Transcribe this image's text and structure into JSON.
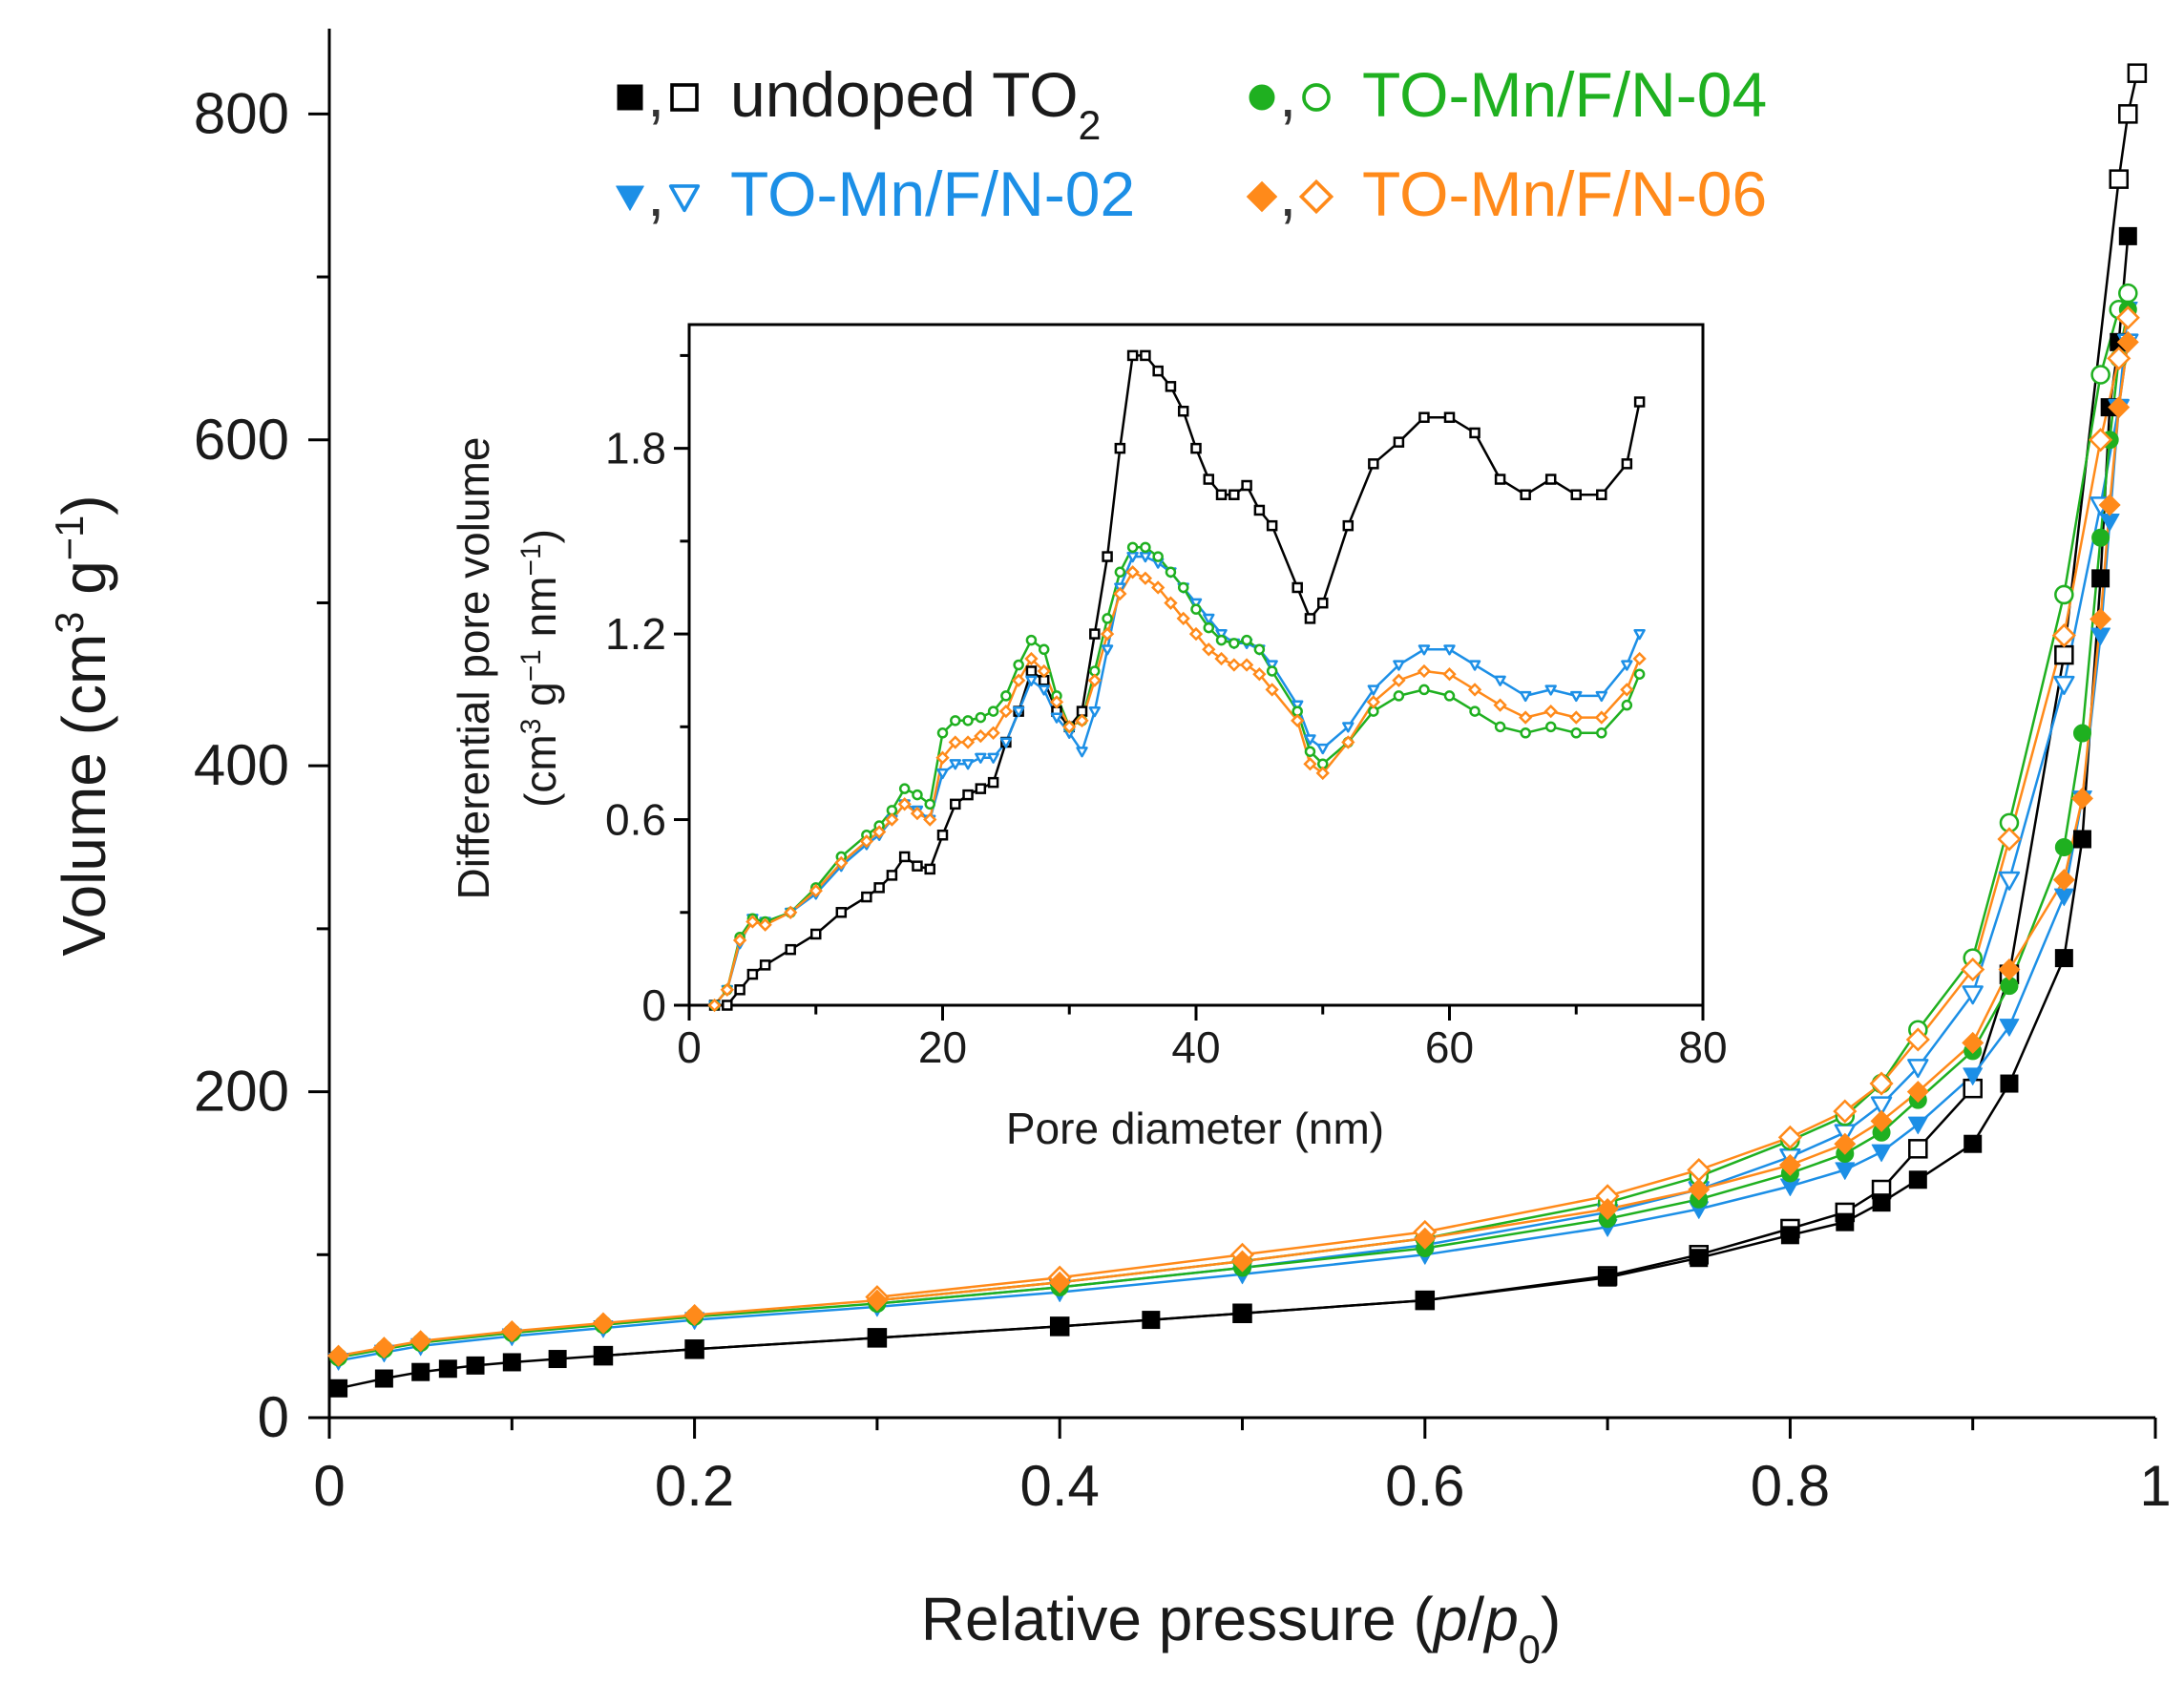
{
  "chart_data": [
    {
      "id": "isotherm",
      "type": "line",
      "xlabel": "Relative pressure (p/p0)",
      "xlabel_parts": [
        "Relative pressure (",
        "p",
        "/",
        "p",
        "0",
        ")"
      ],
      "ylabel": "Volume (cm3 g-1)",
      "ylabel_parts": [
        "Volume (cm",
        "3",
        " g",
        "−1",
        ")"
      ],
      "xlim": [
        0,
        1
      ],
      "ylim": [
        0,
        850
      ],
      "xticks": [
        0,
        0.2,
        0.4,
        0.6,
        0.8,
        1
      ],
      "xtick_labels": [
        "0",
        "0.2",
        "0.4",
        "0.6",
        "0.8",
        "1"
      ],
      "yticks": [
        0,
        200,
        400,
        600,
        800
      ],
      "ytick_labels": [
        "0",
        "200",
        "400",
        "600",
        "800"
      ],
      "legend_position": "top",
      "grid": false,
      "series": [
        {
          "name": "undoped TO2",
          "label_parts": [
            "undoped TO",
            "2"
          ],
          "color": "#000000",
          "marker": "square",
          "adsorption": {
            "x": [
              0.005,
              0.03,
              0.05,
              0.065,
              0.08,
              0.1,
              0.125,
              0.15,
              0.2,
              0.3,
              0.4,
              0.45,
              0.5,
              0.6,
              0.7,
              0.75,
              0.8,
              0.83,
              0.85,
              0.87,
              0.9,
              0.92,
              0.95,
              0.96,
              0.97,
              0.975,
              0.98,
              0.985
            ],
            "y": [
              18,
              24,
              28,
              30,
              32,
              34,
              36,
              38,
              42,
              49,
              56,
              60,
              64,
              72,
              86,
              98,
              112,
              120,
              132,
              146,
              168,
              205,
              282,
              355,
              515,
              620,
              660,
              725
            ]
          },
          "desorption": {
            "x": [
              0.15,
              0.2,
              0.3,
              0.4,
              0.5,
              0.6,
              0.7,
              0.75,
              0.8,
              0.83,
              0.85,
              0.87,
              0.9,
              0.92,
              0.95,
              0.98,
              0.985,
              0.99
            ],
            "y": [
              38,
              42,
              49,
              56,
              64,
              72,
              87,
              100,
              116,
              126,
              140,
              165,
              202,
              272,
              468,
              760,
              800,
              825
            ]
          }
        },
        {
          "name": "TO-Mn/F/N-02",
          "label_parts": [
            "TO-Mn/F/N-02"
          ],
          "color": "#1c8fe6",
          "marker": "triangle-down",
          "adsorption": {
            "x": [
              0.005,
              0.03,
              0.05,
              0.1,
              0.15,
              0.2,
              0.3,
              0.4,
              0.5,
              0.6,
              0.7,
              0.75,
              0.8,
              0.83,
              0.85,
              0.87,
              0.9,
              0.92,
              0.95,
              0.96,
              0.97,
              0.975,
              0.98,
              0.985
            ],
            "y": [
              35,
              40,
              44,
              50,
              55,
              60,
              68,
              77,
              88,
              100,
              117,
              128,
              142,
              152,
              163,
              180,
              210,
              240,
              320,
              380,
              480,
              550,
              620,
              680
            ]
          },
          "desorption": {
            "x": [
              0.3,
              0.4,
              0.5,
              0.6,
              0.7,
              0.75,
              0.8,
              0.83,
              0.85,
              0.87,
              0.9,
              0.92,
              0.95,
              0.97,
              0.98,
              0.985
            ],
            "y": [
              70,
              80,
              92,
              106,
              126,
              140,
              160,
              175,
              192,
              215,
              260,
              330,
              450,
              560,
              620,
              660
            ]
          }
        },
        {
          "name": "TO-Mn/F/N-04",
          "label_parts": [
            "TO-Mn/F/N-04"
          ],
          "color": "#1fb020",
          "marker": "circle",
          "adsorption": {
            "x": [
              0.005,
              0.03,
              0.05,
              0.1,
              0.15,
              0.2,
              0.3,
              0.4,
              0.5,
              0.6,
              0.7,
              0.75,
              0.8,
              0.83,
              0.85,
              0.87,
              0.9,
              0.92,
              0.95,
              0.96,
              0.97,
              0.975,
              0.98,
              0.985
            ],
            "y": [
              37,
              42,
              46,
              52,
              57,
              62,
              70,
              80,
              92,
              104,
              122,
              134,
              150,
              162,
              175,
              195,
              225,
              265,
              350,
              420,
              540,
              600,
              650,
              680
            ]
          },
          "desorption": {
            "x": [
              0.3,
              0.4,
              0.5,
              0.6,
              0.7,
              0.75,
              0.8,
              0.83,
              0.85,
              0.87,
              0.9,
              0.92,
              0.95,
              0.97,
              0.98,
              0.985
            ],
            "y": [
              72,
              83,
              96,
              110,
              132,
              148,
              170,
              185,
              205,
              238,
              282,
              365,
              505,
              640,
              680,
              690
            ]
          }
        },
        {
          "name": "TO-Mn/F/N-06",
          "label_parts": [
            "TO-Mn/F/N-06"
          ],
          "color": "#ff8a1a",
          "marker": "diamond",
          "adsorption": {
            "x": [
              0.005,
              0.03,
              0.05,
              0.1,
              0.15,
              0.2,
              0.3,
              0.4,
              0.5,
              0.6,
              0.7,
              0.75,
              0.8,
              0.83,
              0.85,
              0.87,
              0.9,
              0.92,
              0.95,
              0.96,
              0.97,
              0.975,
              0.98,
              0.985
            ],
            "y": [
              38,
              43,
              47,
              53,
              58,
              63,
              72,
              83,
              96,
              110,
              128,
              140,
              155,
              168,
              182,
              200,
              230,
              275,
              330,
              380,
              490,
              560,
              620,
              660
            ]
          },
          "desorption": {
            "x": [
              0.3,
              0.4,
              0.5,
              0.6,
              0.7,
              0.75,
              0.8,
              0.83,
              0.85,
              0.87,
              0.9,
              0.92,
              0.95,
              0.97,
              0.98,
              0.985
            ],
            "y": [
              74,
              86,
              100,
              114,
              136,
              152,
              172,
              188,
              205,
              232,
              275,
              355,
              480,
              600,
              650,
              675
            ]
          }
        }
      ]
    },
    {
      "id": "inset-psd",
      "type": "line",
      "xlabel": "Pore diameter (nm)",
      "ylabel": "Differential pore volume (cm3 g-1 nm-1)",
      "ylabel_line1": "Differential pore volume",
      "ylabel_line2_parts": [
        "(cm",
        "3",
        " g",
        "−1",
        " nm",
        "−1",
        ")"
      ],
      "xlim": [
        0,
        80
      ],
      "ylim": [
        0,
        2.2
      ],
      "xticks": [
        0,
        20,
        40,
        60,
        80
      ],
      "xtick_labels": [
        "0",
        "20",
        "40",
        "60",
        "80"
      ],
      "yticks": [
        0,
        0.6,
        1.2,
        1.8
      ],
      "ytick_labels": [
        "0",
        "0.6",
        "1.2",
        "1.8"
      ],
      "grid": false,
      "series": [
        {
          "name": "undoped TO2",
          "color": "#000000",
          "marker": "square",
          "x": [
            2,
            3,
            4,
            5,
            6,
            8,
            10,
            12,
            14,
            15,
            16,
            17,
            18,
            19,
            20,
            21,
            22,
            23,
            24,
            25,
            26,
            27,
            28,
            29,
            30,
            31,
            32,
            33,
            34,
            35,
            36,
            37,
            38,
            39,
            40,
            41,
            42,
            43,
            44,
            45,
            46,
            48,
            49,
            50,
            52,
            54,
            56,
            58,
            60,
            62,
            64,
            66,
            68,
            70,
            72,
            74,
            75
          ],
          "y": [
            0,
            0,
            0.05,
            0.1,
            0.13,
            0.18,
            0.23,
            0.3,
            0.35,
            0.38,
            0.42,
            0.48,
            0.45,
            0.44,
            0.55,
            0.65,
            0.68,
            0.7,
            0.72,
            0.85,
            0.95,
            1.08,
            1.05,
            0.95,
            0.9,
            0.95,
            1.2,
            1.45,
            1.8,
            2.1,
            2.1,
            2.05,
            2.0,
            1.92,
            1.8,
            1.7,
            1.65,
            1.65,
            1.68,
            1.6,
            1.55,
            1.35,
            1.25,
            1.3,
            1.55,
            1.75,
            1.82,
            1.9,
            1.9,
            1.85,
            1.7,
            1.65,
            1.7,
            1.65,
            1.65,
            1.75,
            1.95
          ]
        },
        {
          "name": "TO-Mn/F/N-02",
          "color": "#1c8fe6",
          "marker": "triangle-down",
          "x": [
            2,
            3,
            4,
            5,
            6,
            8,
            10,
            12,
            14,
            15,
            16,
            17,
            18,
            19,
            20,
            21,
            22,
            23,
            24,
            25,
            26,
            27,
            28,
            29,
            30,
            31,
            32,
            33,
            34,
            35,
            36,
            37,
            38,
            39,
            40,
            41,
            42,
            43,
            44,
            45,
            46,
            48,
            49,
            50,
            52,
            54,
            56,
            58,
            60,
            62,
            64,
            66,
            68,
            70,
            72,
            74,
            75
          ],
          "y": [
            0,
            0.05,
            0.2,
            0.28,
            0.27,
            0.3,
            0.36,
            0.45,
            0.52,
            0.55,
            0.6,
            0.65,
            0.63,
            0.6,
            0.75,
            0.78,
            0.78,
            0.8,
            0.8,
            0.85,
            0.95,
            1.05,
            1.02,
            0.93,
            0.88,
            0.82,
            0.95,
            1.15,
            1.35,
            1.45,
            1.45,
            1.43,
            1.4,
            1.35,
            1.3,
            1.25,
            1.2,
            1.17,
            1.17,
            1.15,
            1.1,
            0.97,
            0.86,
            0.83,
            0.9,
            1.02,
            1.1,
            1.15,
            1.15,
            1.1,
            1.05,
            1.0,
            1.02,
            1.0,
            1.0,
            1.1,
            1.2
          ]
        },
        {
          "name": "TO-Mn/F/N-04",
          "color": "#1fb020",
          "marker": "circle",
          "x": [
            2,
            3,
            4,
            5,
            6,
            8,
            10,
            12,
            14,
            15,
            16,
            17,
            18,
            19,
            20,
            21,
            22,
            23,
            24,
            25,
            26,
            27,
            28,
            29,
            30,
            31,
            32,
            33,
            34,
            35,
            36,
            37,
            38,
            39,
            40,
            41,
            42,
            43,
            44,
            45,
            46,
            48,
            49,
            50,
            52,
            54,
            56,
            58,
            60,
            62,
            64,
            66,
            68,
            70,
            72,
            74,
            75
          ],
          "y": [
            0,
            0.05,
            0.22,
            0.28,
            0.27,
            0.3,
            0.38,
            0.48,
            0.55,
            0.58,
            0.63,
            0.7,
            0.68,
            0.65,
            0.88,
            0.92,
            0.92,
            0.93,
            0.95,
            1.0,
            1.1,
            1.18,
            1.15,
            1.0,
            0.9,
            0.92,
            1.08,
            1.25,
            1.4,
            1.48,
            1.48,
            1.45,
            1.4,
            1.35,
            1.28,
            1.22,
            1.18,
            1.17,
            1.18,
            1.15,
            1.08,
            0.95,
            0.82,
            0.78,
            0.85,
            0.95,
            1.0,
            1.02,
            1.0,
            0.95,
            0.9,
            0.88,
            0.9,
            0.88,
            0.88,
            0.97,
            1.07
          ]
        },
        {
          "name": "TO-Mn/F/N-06",
          "color": "#ff8a1a",
          "marker": "diamond",
          "x": [
            2,
            3,
            4,
            5,
            6,
            8,
            10,
            12,
            14,
            15,
            16,
            17,
            18,
            19,
            20,
            21,
            22,
            23,
            24,
            25,
            26,
            27,
            28,
            29,
            30,
            31,
            32,
            33,
            34,
            35,
            36,
            37,
            38,
            39,
            40,
            41,
            42,
            43,
            44,
            45,
            46,
            48,
            49,
            50,
            52,
            54,
            56,
            58,
            60,
            62,
            64,
            66,
            68,
            70,
            72,
            74,
            75
          ],
          "y": [
            0,
            0.05,
            0.21,
            0.27,
            0.26,
            0.3,
            0.37,
            0.46,
            0.53,
            0.56,
            0.6,
            0.65,
            0.62,
            0.6,
            0.8,
            0.85,
            0.85,
            0.87,
            0.88,
            0.95,
            1.05,
            1.12,
            1.08,
            0.98,
            0.9,
            0.92,
            1.05,
            1.2,
            1.33,
            1.4,
            1.38,
            1.35,
            1.3,
            1.25,
            1.2,
            1.15,
            1.12,
            1.1,
            1.1,
            1.07,
            1.02,
            0.92,
            0.78,
            0.75,
            0.85,
            0.98,
            1.05,
            1.08,
            1.07,
            1.02,
            0.97,
            0.93,
            0.95,
            0.93,
            0.93,
            1.02,
            1.12
          ]
        }
      ]
    }
  ]
}
